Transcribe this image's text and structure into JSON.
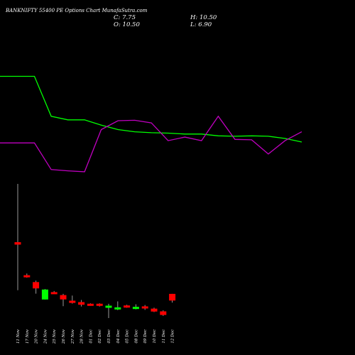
{
  "header": {
    "title": "BANKNIFTY 55400  PE Options  Chart MunafaSutra.com",
    "close_text": "C: 7.75",
    "open_text": "O: 10.50",
    "high_text": "H: 10.50",
    "low_text": "L: 6.90"
  },
  "colors": {
    "background": "#000000",
    "up": "#00ff00",
    "down": "#ff0000",
    "line_green": "#00ff00",
    "line_magenta": "#c000c0",
    "wick": "#999999"
  },
  "chart_data": {
    "type": "candlestick",
    "x": [
      "11 Nov",
      "17 Nov",
      "20 Nov",
      "24 Nov",
      "25 Nov",
      "26 Nov",
      "27 Nov",
      "28 Nov",
      "01 Dec",
      "02 Dec",
      "03 Dec",
      "04 Dec",
      "05 Dec",
      "08 Dec",
      "09 Dec",
      "10 Dec",
      "11 Dec",
      "12 Dec"
    ],
    "open": [
      31.9,
      18.0,
      15.4,
      8.2,
      11.1,
      10.0,
      7.7,
      7.1,
      6.3,
      6.2,
      4.8,
      4.2,
      5.6,
      4.4,
      5.2,
      4.4,
      3.3,
      10.5
    ],
    "high": [
      56.0,
      18.9,
      16.0,
      12.5,
      11.7,
      10.5,
      9.8,
      8.0,
      6.6,
      6.6,
      6.4,
      7.4,
      6.0,
      6.2,
      5.9,
      4.8,
      3.7,
      10.5
    ],
    "low": [
      12.0,
      17.2,
      10.6,
      8.2,
      10.5,
      5.4,
      6.5,
      5.3,
      5.6,
      5.3,
      0.5,
      3.8,
      4.8,
      4.1,
      3.9,
      3.0,
      1.4,
      6.9
    ],
    "close": [
      30.9,
      17.6,
      12.8,
      12.3,
      10.5,
      8.2,
      6.8,
      6.0,
      5.7,
      5.8,
      5.6,
      4.8,
      5.0,
      5.0,
      4.6,
      3.2,
      1.8,
      7.75
    ],
    "line_green": [
      300,
      300,
      210,
      202,
      202,
      190,
      180,
      175,
      173,
      172,
      170,
      170,
      166,
      165,
      166,
      165,
      160,
      152
    ],
    "line_magenta": [
      150,
      150,
      90,
      87,
      85,
      180,
      200,
      201,
      195,
      155,
      163,
      155,
      210,
      158,
      157,
      125,
      155,
      175
    ]
  }
}
